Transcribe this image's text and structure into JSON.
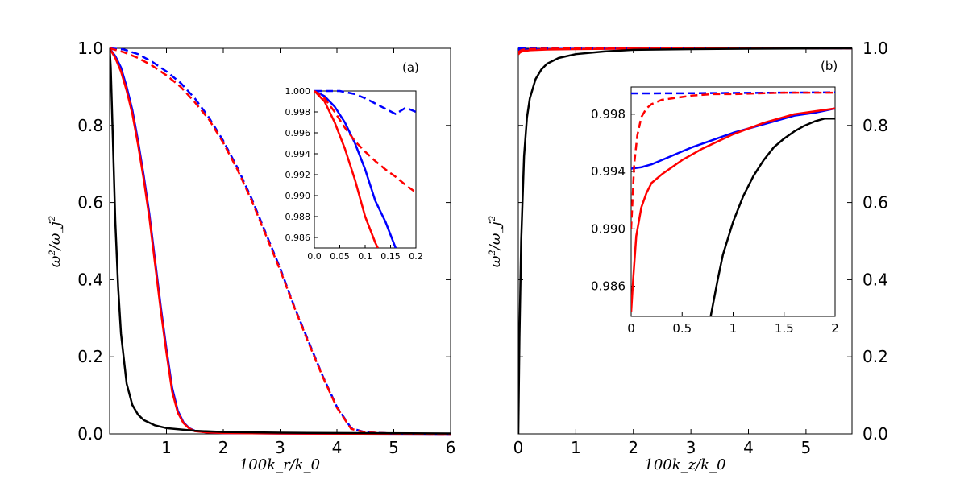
{
  "colors": {
    "blue": "#0000ff",
    "red": "#ff0000",
    "black": "#000000"
  },
  "chart_data": [
    {
      "type": "line",
      "panel_label": "(a)",
      "xlabel": "100k_r/k_0",
      "ylabel": "ω²/ω_j²",
      "xlim": [
        0,
        6
      ],
      "ylim": [
        0,
        1.0
      ],
      "xticks": [
        "1",
        "2",
        "3",
        "4",
        "5",
        "6"
      ],
      "yticks": [
        "0.0",
        "0.2",
        "0.4",
        "0.6",
        "0.8",
        "1.0"
      ],
      "series": [
        {
          "name": "blue-solid",
          "color": "blue",
          "dash": false,
          "x": [
            0,
            0.1,
            0.2,
            0.3,
            0.4,
            0.5,
            0.6,
            0.7,
            0.8,
            0.9,
            1.0,
            1.1,
            1.2,
            1.3,
            1.4,
            1.5,
            1.7,
            2.0,
            3.0,
            6.0
          ],
          "y": [
            1.0,
            0.98,
            0.95,
            0.9,
            0.84,
            0.76,
            0.67,
            0.57,
            0.45,
            0.33,
            0.22,
            0.12,
            0.06,
            0.03,
            0.015,
            0.008,
            0.004,
            0.002,
            0.001,
            0.0
          ]
        },
        {
          "name": "red-solid",
          "color": "red",
          "dash": false,
          "x": [
            0,
            0.1,
            0.2,
            0.3,
            0.4,
            0.5,
            0.6,
            0.7,
            0.8,
            0.9,
            1.0,
            1.1,
            1.2,
            1.3,
            1.4,
            1.5,
            1.7,
            2.0,
            3.0,
            6.0
          ],
          "y": [
            1.0,
            0.975,
            0.94,
            0.89,
            0.83,
            0.75,
            0.66,
            0.56,
            0.44,
            0.32,
            0.21,
            0.11,
            0.055,
            0.028,
            0.014,
            0.007,
            0.004,
            0.002,
            0.001,
            0.0
          ]
        },
        {
          "name": "blue-dashed",
          "color": "blue",
          "dash": true,
          "x": [
            0,
            0.25,
            0.5,
            0.75,
            1.0,
            1.25,
            1.5,
            1.75,
            2.0,
            2.25,
            2.5,
            2.75,
            3.0,
            3.25,
            3.5,
            3.75,
            4.0,
            4.25,
            4.5,
            5.0,
            6.0
          ],
          "y": [
            1.0,
            0.997,
            0.985,
            0.965,
            0.94,
            0.91,
            0.87,
            0.82,
            0.76,
            0.69,
            0.61,
            0.52,
            0.43,
            0.33,
            0.24,
            0.15,
            0.07,
            0.015,
            0.004,
            0.001,
            0.0
          ]
        },
        {
          "name": "red-dashed",
          "color": "red",
          "dash": true,
          "x": [
            0,
            0.25,
            0.5,
            0.75,
            1.0,
            1.25,
            1.5,
            1.75,
            2.0,
            2.25,
            2.5,
            2.75,
            3.0,
            3.25,
            3.5,
            3.75,
            4.0,
            4.25,
            4.5,
            5.0,
            6.0
          ],
          "y": [
            1.0,
            0.99,
            0.975,
            0.955,
            0.93,
            0.9,
            0.86,
            0.815,
            0.755,
            0.685,
            0.605,
            0.515,
            0.425,
            0.328,
            0.236,
            0.148,
            0.068,
            0.013,
            0.004,
            0.001,
            0.0
          ]
        },
        {
          "name": "black-solid",
          "color": "black",
          "dash": false,
          "x": [
            0,
            0.02,
            0.05,
            0.1,
            0.15,
            0.2,
            0.3,
            0.4,
            0.5,
            0.6,
            0.8,
            1.0,
            1.5,
            2.0,
            3.0,
            6.0
          ],
          "y": [
            1.0,
            0.95,
            0.8,
            0.55,
            0.38,
            0.26,
            0.13,
            0.075,
            0.05,
            0.036,
            0.022,
            0.015,
            0.008,
            0.005,
            0.003,
            0.001
          ]
        }
      ],
      "inset": {
        "xlim": [
          0,
          0.2
        ],
        "ylim": [
          0.985,
          1.0
        ],
        "xticks": [
          "0.0",
          "0.05",
          "0.1",
          "0.15",
          "0.2"
        ],
        "yticks": [
          "0.986",
          "0.988",
          "0.990",
          "0.992",
          "0.994",
          "0.996",
          "0.998",
          "1.000"
        ],
        "series": [
          {
            "name": "blue-solid",
            "color": "blue",
            "dash": false,
            "x": [
              0,
              0.02,
              0.04,
              0.06,
              0.08,
              0.1,
              0.12,
              0.14,
              0.16
            ],
            "y": [
              1.0,
              0.9995,
              0.9985,
              0.997,
              0.995,
              0.9925,
              0.9895,
              0.9875,
              0.985
            ]
          },
          {
            "name": "red-solid",
            "color": "red",
            "dash": false,
            "x": [
              0,
              0.02,
              0.04,
              0.06,
              0.08,
              0.1,
              0.12,
              0.125
            ],
            "y": [
              1.0,
              0.999,
              0.997,
              0.9945,
              0.9915,
              0.988,
              0.9855,
              0.985
            ]
          },
          {
            "name": "blue-dashed",
            "color": "blue",
            "dash": true,
            "x": [
              0,
              0.02,
              0.05,
              0.08,
              0.1,
              0.12,
              0.14,
              0.16,
              0.18,
              0.2
            ],
            "y": [
              1.0,
              1.0,
              1.0,
              0.9997,
              0.9993,
              0.9988,
              0.9983,
              0.9978,
              0.9984,
              0.998
            ]
          },
          {
            "name": "red-dashed",
            "color": "red",
            "dash": true,
            "x": [
              0,
              0.02,
              0.04,
              0.06,
              0.08,
              0.1,
              0.12,
              0.14,
              0.16,
              0.18,
              0.2
            ],
            "y": [
              1.0,
              0.9993,
              0.998,
              0.9965,
              0.9952,
              0.9942,
              0.9933,
              0.9925,
              0.9918,
              0.991,
              0.9903
            ]
          }
        ]
      }
    },
    {
      "type": "line",
      "panel_label": "(b)",
      "xlabel": "100k_z/k_0",
      "ylabel": "ω²/ω_j²",
      "xlim": [
        0,
        5.8
      ],
      "ylim": [
        0,
        1.0
      ],
      "xticks": [
        "0",
        "1",
        "2",
        "3",
        "4",
        "5"
      ],
      "yticks": [
        "0.0",
        "0.2",
        "0.4",
        "0.6",
        "0.8",
        "1.0"
      ],
      "series": [
        {
          "name": "blue-solid",
          "color": "blue",
          "dash": false,
          "x": [
            0,
            0.05,
            0.1,
            0.2,
            0.5,
            1.0,
            2.0,
            5.8
          ],
          "y": [
            0.9942,
            0.9945,
            0.9955,
            0.997,
            0.998,
            0.999,
            0.9995,
            1.0
          ]
        },
        {
          "name": "red-solid",
          "color": "red",
          "dash": false,
          "x": [
            0,
            0.02,
            0.05,
            0.1,
            0.2,
            0.5,
            1.0,
            2.0,
            5.8
          ],
          "y": [
            0.984,
            0.988,
            0.991,
            0.993,
            0.995,
            0.997,
            0.998,
            0.9993,
            1.0
          ]
        },
        {
          "name": "blue-dashed",
          "color": "blue",
          "dash": true,
          "x": [
            0,
            5.8
          ],
          "y": [
            0.9995,
            0.9999
          ]
        },
        {
          "name": "red-dashed",
          "color": "red",
          "dash": true,
          "x": [
            0,
            0.05,
            0.1,
            0.2,
            0.5,
            1.0,
            5.8
          ],
          "y": [
            0.99,
            0.995,
            0.997,
            0.998,
            0.9992,
            0.9995,
            1.0
          ]
        },
        {
          "name": "black-solid",
          "color": "black",
          "dash": false,
          "x": [
            0,
            0.02,
            0.05,
            0.1,
            0.15,
            0.2,
            0.3,
            0.4,
            0.5,
            0.7,
            1.0,
            1.5,
            2.0,
            3.0,
            4.0,
            5.8
          ],
          "y": [
            0.0,
            0.25,
            0.5,
            0.72,
            0.82,
            0.87,
            0.92,
            0.945,
            0.96,
            0.975,
            0.985,
            0.992,
            0.996,
            0.998,
            0.999,
            1.0
          ]
        }
      ],
      "inset": {
        "xlim": [
          0,
          2
        ],
        "ylim": [
          0.9839,
          0.9999
        ],
        "xticks": [
          "0",
          "0.5",
          "1",
          "1.5",
          "2"
        ],
        "yticks": [
          "0.986",
          "0.990",
          "0.994",
          "0.998"
        ],
        "series": [
          {
            "name": "blue-solid",
            "color": "blue",
            "dash": false,
            "x": [
              0,
              0.1,
              0.2,
              0.3,
              0.4,
              0.5,
              0.6,
              0.8,
              1.0,
              1.2,
              1.4,
              1.6,
              1.8,
              2.0
            ],
            "y": [
              0.9942,
              0.9943,
              0.9945,
              0.9948,
              0.9951,
              0.9954,
              0.9957,
              0.9962,
              0.9967,
              0.9971,
              0.9975,
              0.9979,
              0.9981,
              0.9984
            ]
          },
          {
            "name": "red-solid",
            "color": "red",
            "dash": false,
            "x": [
              0,
              0.02,
              0.05,
              0.1,
              0.15,
              0.2,
              0.3,
              0.4,
              0.5,
              0.7,
              1.0,
              1.3,
              1.6,
              2.0
            ],
            "y": [
              0.9842,
              0.9865,
              0.9895,
              0.9915,
              0.9925,
              0.9932,
              0.9938,
              0.9943,
              0.9948,
              0.9956,
              0.9966,
              0.9974,
              0.998,
              0.9984
            ]
          },
          {
            "name": "blue-dashed",
            "color": "blue",
            "dash": true,
            "x": [
              0,
              0.5,
              1.0,
              1.5,
              2.0
            ],
            "y": [
              0.99945,
              0.99946,
              0.99948,
              0.9995,
              0.99952
            ]
          },
          {
            "name": "red-dashed",
            "color": "red",
            "dash": true,
            "x": [
              0,
              0.03,
              0.06,
              0.1,
              0.15,
              0.2,
              0.3,
              0.4,
              0.6,
              0.8,
              1.0,
              1.5,
              2.0
            ],
            "y": [
              0.99,
              0.9945,
              0.9965,
              0.9978,
              0.9984,
              0.9987,
              0.999,
              0.9991,
              0.9993,
              0.9994,
              0.9994,
              0.9995,
              0.9995
            ]
          },
          {
            "name": "black-solid",
            "color": "black",
            "dash": false,
            "x": [
              0.78,
              0.85,
              0.9,
              1.0,
              1.1,
              1.2,
              1.3,
              1.4,
              1.5,
              1.6,
              1.7,
              1.8,
              1.9,
              2.0
            ],
            "y": [
              0.9839,
              0.9865,
              0.9882,
              0.9905,
              0.9923,
              0.9937,
              0.9948,
              0.9957,
              0.9963,
              0.9968,
              0.9972,
              0.9975,
              0.9977,
              0.9977
            ]
          }
        ]
      }
    }
  ]
}
